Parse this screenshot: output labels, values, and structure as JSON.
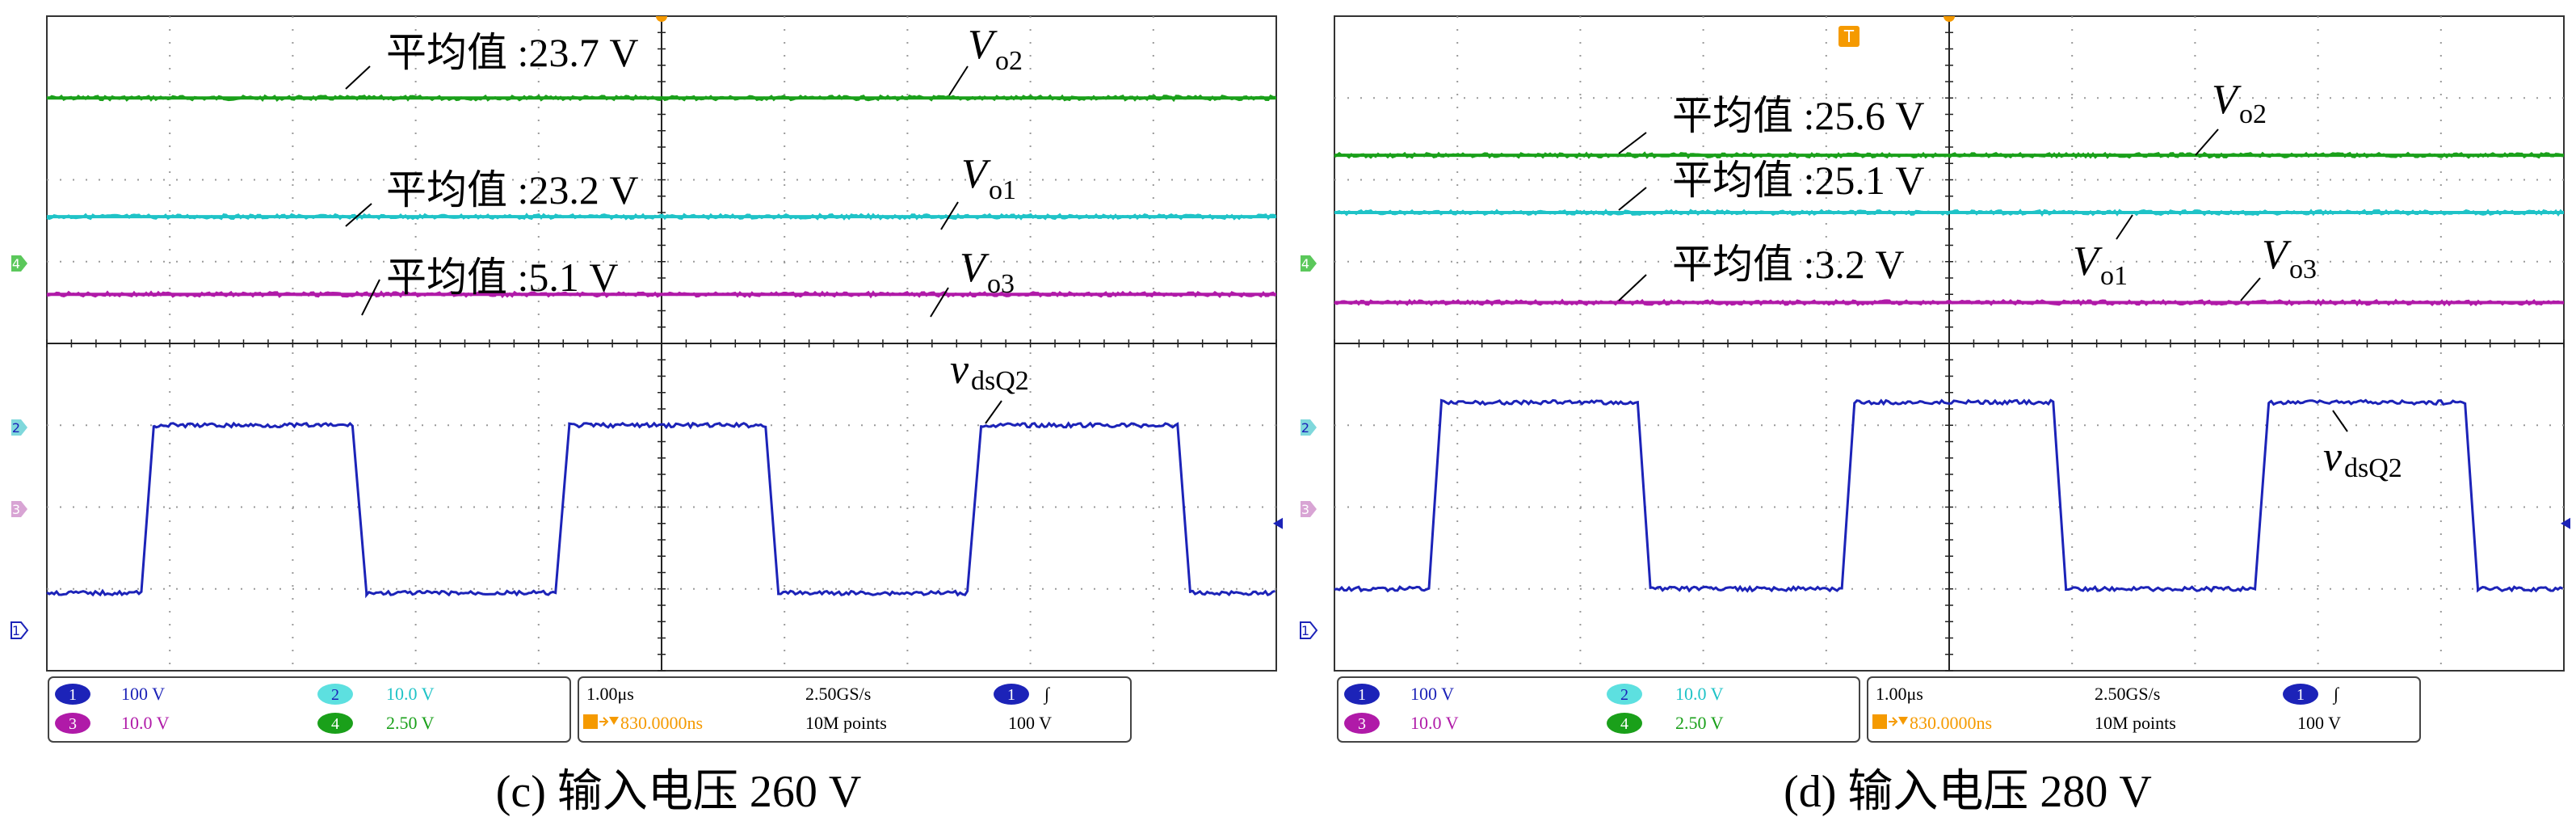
{
  "colors": {
    "ch1": "#1c23b8",
    "ch2": "#1fc3c7",
    "ch3": "#b01aa8",
    "ch4": "#1aa01a",
    "trigger": "#f59a00",
    "grid": "#9a9a9a",
    "frame": "#333333",
    "ch1_badge": "#1c23b8",
    "ch2_badge": "#5de0e0",
    "ch3_badge": "#b01aa8",
    "ch4_badge": "#1aa01a"
  },
  "panels": [
    {
      "id": "c",
      "caption": "(c) 输入电压 260 V",
      "annotations": [
        {
          "pre": "平均值 :",
          "value": "23.7 V"
        },
        {
          "pre": "平均值 :",
          "value": "23.2 V"
        },
        {
          "pre": "平均值 :",
          "value": "5.1 V"
        }
      ],
      "signal_labels": [
        {
          "main": "V",
          "sub": "o2"
        },
        {
          "main": "V",
          "sub": "o1"
        },
        {
          "main": "V",
          "sub": "o3"
        },
        {
          "main": "v",
          "sub": "dsQ2"
        }
      ],
      "settings": {
        "ch1_num": "1",
        "ch1_scale": "100 V",
        "ch2_num": "2",
        "ch2_scale": "10.0 V",
        "ch3_num": "3",
        "ch3_scale": "10.0 V",
        "ch4_num": "4",
        "ch4_scale": "2.50 V",
        "timebase": "1.00μs",
        "sample_rate": "2.50GS/s",
        "trig_source": "1",
        "trig_slope": "∫",
        "trig_delay": "830.0000ns",
        "record_length": "10M points",
        "trig_level": "100 V"
      },
      "trigger_marker": "",
      "channel_markers": {
        "m4": "4",
        "m2": "2",
        "m3": "3",
        "m1": "1"
      }
    },
    {
      "id": "d",
      "caption": "(d) 输入电压 280 V",
      "annotations": [
        {
          "pre": "平均值 :",
          "value": "25.6 V"
        },
        {
          "pre": "平均值 :",
          "value": "25.1 V"
        },
        {
          "pre": "平均值 :",
          "value": "3.2 V"
        }
      ],
      "signal_labels": [
        {
          "main": "V",
          "sub": "o2"
        },
        {
          "main": "V",
          "sub": "o1"
        },
        {
          "main": "V",
          "sub": "o3"
        },
        {
          "main": "v",
          "sub": "dsQ2"
        }
      ],
      "settings": {
        "ch1_num": "1",
        "ch1_scale": "100 V",
        "ch2_num": "2",
        "ch2_scale": "10.0 V",
        "ch3_num": "3",
        "ch3_scale": "10.0 V",
        "ch4_num": "4",
        "ch4_scale": "2.50 V",
        "timebase": "1.00μs",
        "sample_rate": "2.50GS/s",
        "trig_source": "1",
        "trig_slope": "∫",
        "trig_delay": "830.0000ns",
        "record_length": "10M points",
        "trig_level": "100 V"
      },
      "trigger_marker": "T",
      "channel_markers": {
        "m4": "4",
        "m2": "2",
        "m3": "3",
        "m1": "1"
      }
    }
  ],
  "chart_data": [
    {
      "type": "line",
      "title": "(c) 输入电压 260 V",
      "xlabel": "",
      "ylabel": "",
      "x_divisions": 10,
      "y_divisions": 8,
      "time_per_div_us": 1.0,
      "grid": true,
      "series": [
        {
          "name": "Vo2",
          "channel": 4,
          "avg_V": 23.7,
          "level_div": 3.0
        },
        {
          "name": "Vo1",
          "channel": 2,
          "avg_V": 23.2,
          "level_div": 1.55
        },
        {
          "name": "Vo3",
          "channel": 3,
          "avg_V": 5.1,
          "level_div": 0.6
        },
        {
          "name": "vdsQ2",
          "channel": 1,
          "low_div": -3.05,
          "high_div": -1.0,
          "transitions_div": [
            [
              0.78,
              0.87,
              2.5,
              2.6
            ],
            [
              4.15,
              4.25,
              5.85,
              5.95
            ],
            [
              7.5,
              7.6,
              9.2,
              9.3
            ]
          ]
        }
      ]
    },
    {
      "type": "line",
      "title": "(d) 输入电压 280 V",
      "xlabel": "",
      "ylabel": "",
      "x_divisions": 10,
      "y_divisions": 8,
      "time_per_div_us": 1.0,
      "grid": true,
      "series": [
        {
          "name": "Vo2",
          "channel": 4,
          "avg_V": 25.6,
          "level_div": 2.3
        },
        {
          "name": "Vo1",
          "channel": 2,
          "avg_V": 25.1,
          "level_div": 1.6
        },
        {
          "name": "Vo3",
          "channel": 3,
          "avg_V": 3.2,
          "level_div": 0.5
        },
        {
          "name": "vdsQ2",
          "channel": 1,
          "low_div": -3.0,
          "high_div": -0.72,
          "transitions_div": [
            [
              0.78,
              0.87,
              2.47,
              2.57
            ],
            [
              4.13,
              4.23,
              5.85,
              5.95
            ],
            [
              7.5,
              7.6,
              9.2,
              9.3
            ]
          ]
        }
      ]
    }
  ]
}
